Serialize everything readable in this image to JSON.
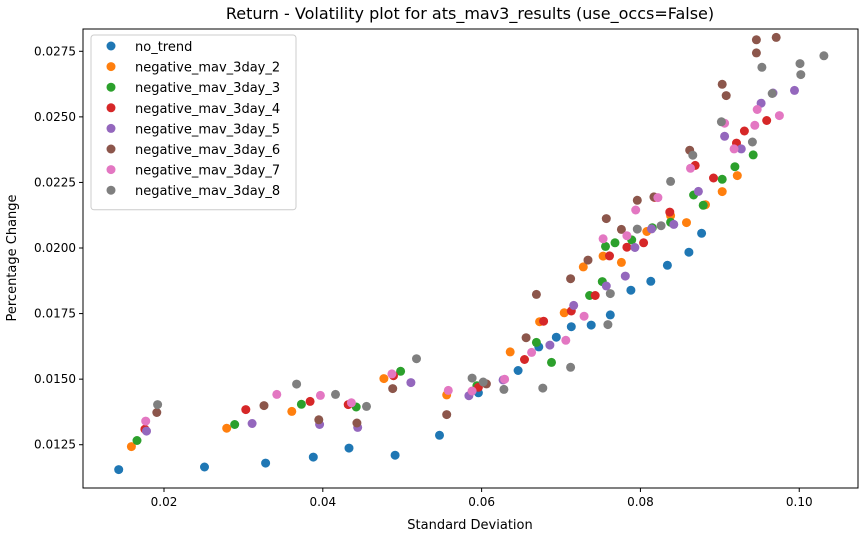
{
  "chart_data": {
    "type": "scatter",
    "title": "Return - Volatility plot for ats_mav3_results (use_occs=False)",
    "xlabel": "Standard Deviation",
    "ylabel": "Percentage Change",
    "xlim": [
      0.0098,
      0.1074
    ],
    "ylim": [
      0.01085,
      0.02835
    ],
    "x_ticks": [
      0.02,
      0.04,
      0.06,
      0.08,
      0.1
    ],
    "x_tick_labels": [
      "0.02",
      "0.04",
      "0.06",
      "0.08",
      "0.10"
    ],
    "y_ticks": [
      0.0125,
      0.015,
      0.0175,
      0.02,
      0.0225,
      0.025,
      0.0275
    ],
    "y_tick_labels": [
      "0.0125",
      "0.0150",
      "0.0175",
      "0.0200",
      "0.0225",
      "0.0250",
      "0.0275"
    ],
    "grid": false,
    "legend_position": "top-left",
    "series": [
      {
        "name": "no_trend",
        "color": "#1f77b4",
        "x": [
          0.0143,
          0.0251,
          0.0328,
          0.0388,
          0.0433,
          0.0491,
          0.0547,
          0.0596,
          0.0646,
          0.0672,
          0.0694,
          0.0713,
          0.0738,
          0.0762,
          0.0788,
          0.0813,
          0.0834,
          0.0861,
          0.0877
        ],
        "y": [
          0.01155,
          0.01165,
          0.0118,
          0.01203,
          0.01237,
          0.0121,
          0.01286,
          0.01448,
          0.01533,
          0.01623,
          0.0166,
          0.017,
          0.01706,
          0.01745,
          0.01839,
          0.01873,
          0.01934,
          0.01984,
          0.02056
        ]
      },
      {
        "name": "negative_mav_3day_2",
        "color": "#ff7f0e",
        "x": [
          0.0159,
          0.0279,
          0.0361,
          0.0477,
          0.0556,
          0.0594,
          0.0636,
          0.0673,
          0.0704,
          0.0728,
          0.0753,
          0.0776,
          0.0808,
          0.0838,
          0.0858,
          0.0882,
          0.0903,
          0.0922
        ],
        "y": [
          0.01243,
          0.01313,
          0.01377,
          0.01502,
          0.0144,
          0.0147,
          0.01604,
          0.01719,
          0.01753,
          0.01928,
          0.01969,
          0.01945,
          0.02063,
          0.02123,
          0.02097,
          0.02165,
          0.02215,
          0.02276
        ]
      },
      {
        "name": "negative_mav_3day_3",
        "color": "#2ca02c",
        "x": [
          0.0166,
          0.0289,
          0.0373,
          0.0498,
          0.0594,
          0.0669,
          0.0688,
          0.0736,
          0.0752,
          0.0768,
          0.0789,
          0.0815,
          0.0838,
          0.0867,
          0.0879,
          0.0903,
          0.0919,
          0.0942,
          0.0442,
          0.0756
        ],
        "y": [
          0.01266,
          0.01327,
          0.01404,
          0.0153,
          0.01475,
          0.0164,
          0.01564,
          0.01819,
          0.01872,
          0.0202,
          0.02031,
          0.02077,
          0.02098,
          0.02202,
          0.02163,
          0.02262,
          0.0231,
          0.02355,
          0.01394,
          0.02006
        ]
      },
      {
        "name": "negative_mav_3day_4",
        "color": "#d62728",
        "x": [
          0.0176,
          0.0303,
          0.0384,
          0.0432,
          0.0489,
          0.0596,
          0.0654,
          0.0678,
          0.0713,
          0.0743,
          0.0761,
          0.0783,
          0.0804,
          0.0818,
          0.0837,
          0.0869,
          0.0892,
          0.0921,
          0.0931,
          0.0959
        ],
        "y": [
          0.01309,
          0.01384,
          0.01415,
          0.01403,
          0.01513,
          0.01469,
          0.01575,
          0.01721,
          0.0176,
          0.01819,
          0.0197,
          0.02003,
          0.0202,
          0.02193,
          0.02137,
          0.02315,
          0.02267,
          0.024,
          0.02446,
          0.02486
        ]
      },
      {
        "name": "negative_mav_3day_5",
        "color": "#9467bd",
        "x": [
          0.0178,
          0.0311,
          0.0396,
          0.0444,
          0.0511,
          0.0584,
          0.0627,
          0.0686,
          0.0716,
          0.0757,
          0.0781,
          0.0793,
          0.0814,
          0.0842,
          0.0873,
          0.0906,
          0.0927,
          0.0952,
          0.0967,
          0.0994
        ],
        "y": [
          0.01302,
          0.01331,
          0.01327,
          0.01316,
          0.01487,
          0.01437,
          0.01497,
          0.0163,
          0.01781,
          0.01855,
          0.01893,
          0.02002,
          0.02073,
          0.0209,
          0.02216,
          0.02426,
          0.02378,
          0.02552,
          0.02591,
          0.02601
        ]
      },
      {
        "name": "negative_mav_3day_6",
        "color": "#8c564b",
        "x": [
          0.0191,
          0.0326,
          0.0395,
          0.0443,
          0.0488,
          0.0556,
          0.0606,
          0.0656,
          0.0669,
          0.0712,
          0.0734,
          0.0757,
          0.0776,
          0.0796,
          0.0817,
          0.0862,
          0.0903,
          0.0908,
          0.0946,
          0.0946,
          0.0971
        ],
        "y": [
          0.01373,
          0.01399,
          0.01345,
          0.01333,
          0.01464,
          0.01365,
          0.01482,
          0.01658,
          0.01823,
          0.01883,
          0.01954,
          0.02112,
          0.02071,
          0.02182,
          0.02195,
          0.02373,
          0.02624,
          0.02581,
          0.02794,
          0.02744,
          0.02803
        ]
      },
      {
        "name": "negative_mav_3day_7",
        "color": "#e377c2",
        "x": [
          0.0177,
          0.0342,
          0.0397,
          0.0436,
          0.0487,
          0.0558,
          0.0588,
          0.0629,
          0.0663,
          0.0706,
          0.0729,
          0.0753,
          0.0783,
          0.0794,
          0.0822,
          0.0863,
          0.0906,
          0.0918,
          0.0944,
          0.0947,
          0.0975
        ],
        "y": [
          0.0134,
          0.01442,
          0.01438,
          0.0141,
          0.0152,
          0.01457,
          0.01455,
          0.015,
          0.01602,
          0.01648,
          0.0174,
          0.02035,
          0.02047,
          0.02145,
          0.02192,
          0.02304,
          0.02476,
          0.02378,
          0.02468,
          0.02528,
          0.02505
        ]
      },
      {
        "name": "negative_mav_3day_8",
        "color": "#7f7f7f",
        "x": [
          0.0192,
          0.0367,
          0.0416,
          0.0455,
          0.0518,
          0.0588,
          0.0602,
          0.0628,
          0.0677,
          0.0712,
          0.0759,
          0.0762,
          0.0796,
          0.0826,
          0.0838,
          0.0866,
          0.0902,
          0.0941,
          0.0953,
          0.0966,
          0.1002,
          0.1001,
          0.1031
        ],
        "y": [
          0.01403,
          0.01481,
          0.01442,
          0.01396,
          0.01578,
          0.01504,
          0.01489,
          0.01461,
          0.01466,
          0.01545,
          0.01708,
          0.01826,
          0.02072,
          0.02085,
          0.02254,
          0.02354,
          0.02481,
          0.02404,
          0.02689,
          0.02589,
          0.02661,
          0.02703,
          0.02733
        ]
      }
    ]
  }
}
